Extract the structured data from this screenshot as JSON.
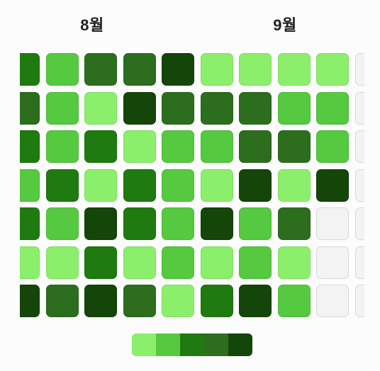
{
  "months": {
    "left": "8월",
    "right": "9월"
  },
  "palette": {
    "empty": "#f3f3f3",
    "level1": "#8bef6b",
    "level2": "#55c93f",
    "level3": "#1f7a0f",
    "level4": "#2c6d1e",
    "level5": "#144509"
  },
  "heatmap": {
    "rows": [
      [
        "level3",
        "level2",
        "level4",
        "level4",
        "level5",
        "level1",
        "level1",
        "level1",
        "level1",
        "empty"
      ],
      [
        "level4",
        "level2",
        "level1",
        "level5",
        "level4",
        "level4",
        "level4",
        "level2",
        "level2",
        "empty"
      ],
      [
        "level3",
        "level2",
        "level3",
        "level1",
        "level2",
        "level2",
        "level4",
        "level4",
        "level2",
        "empty"
      ],
      [
        "level2",
        "level3",
        "level1",
        "level3",
        "level2",
        "level1",
        "level5",
        "level1",
        "level5",
        "empty"
      ],
      [
        "level3",
        "level2",
        "level5",
        "level3",
        "level2",
        "level5",
        "level2",
        "level4",
        "empty",
        "empty"
      ],
      [
        "level1",
        "level1",
        "level3",
        "level1",
        "level2",
        "level1",
        "level2",
        "level1",
        "empty",
        "empty"
      ],
      [
        "level5",
        "level4",
        "level5",
        "level4",
        "level1",
        "level3",
        "level5",
        "level2",
        "empty",
        "empty"
      ]
    ]
  },
  "legend": {
    "levels": [
      "level1",
      "level2",
      "level3",
      "level4",
      "level5"
    ]
  }
}
